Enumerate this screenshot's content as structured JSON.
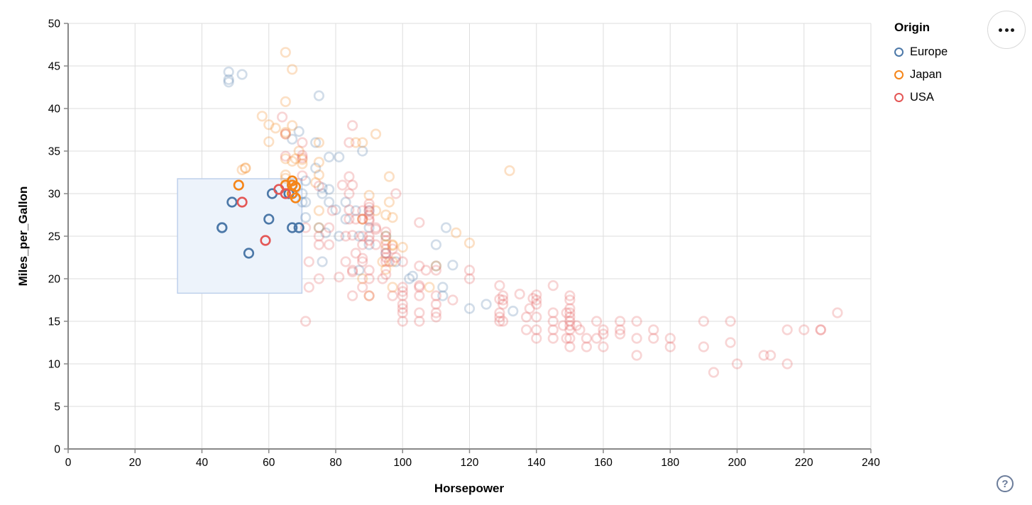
{
  "actions_button": {
    "icon": "ellipsis-icon"
  },
  "help_button": {
    "label": "?"
  },
  "chart_data": {
    "type": "scatter",
    "title": "",
    "xlabel": "Horsepower",
    "ylabel": "Miles_per_Gallon",
    "xlim": [
      0,
      240
    ],
    "ylim": [
      0,
      50
    ],
    "x_ticks": [
      0,
      20,
      40,
      60,
      80,
      100,
      120,
      140,
      160,
      180,
      200,
      220,
      240
    ],
    "y_ticks": [
      0,
      5,
      10,
      15,
      20,
      25,
      30,
      35,
      40,
      45,
      50
    ],
    "grid": true,
    "point_shape": "open-circle",
    "unselected_opacity": 0.25,
    "brush": {
      "x": [
        32.7,
        69.9
      ],
      "y": [
        18.3,
        31.75
      ],
      "fill": "#edf3fb",
      "stroke": "#bed0ec"
    },
    "legend": {
      "title": "Origin",
      "position": "top-right",
      "entries": [
        {
          "label": "Europe",
          "color": "#4c78a8"
        },
        {
          "label": "Japan",
          "color": "#f58518"
        },
        {
          "label": "USA",
          "color": "#e45756"
        }
      ]
    },
    "series": [
      {
        "name": "Europe",
        "color": "#4c78a8",
        "points": [
          [
            46,
            26
          ],
          [
            46,
            26
          ],
          [
            49,
            29
          ],
          [
            54,
            23
          ],
          [
            60,
            27
          ],
          [
            61,
            30
          ],
          [
            66,
            30
          ],
          [
            67,
            30
          ],
          [
            67,
            31
          ],
          [
            67,
            26
          ],
          [
            69,
            26
          ],
          [
            87,
            25
          ],
          [
            90,
            24
          ],
          [
            95,
            25
          ],
          [
            113,
            26
          ],
          [
            90,
            28
          ],
          [
            70,
            30
          ],
          [
            76,
            30
          ],
          [
            112,
            18
          ],
          [
            87,
            21
          ],
          [
            76,
            22
          ],
          [
            90,
            26
          ],
          [
            112,
            19
          ],
          [
            110,
            24
          ],
          [
            95,
            23
          ],
          [
            75,
            26
          ],
          [
            98,
            22
          ],
          [
            86,
            28
          ],
          [
            81,
            25
          ],
          [
            83,
            27
          ],
          [
            71,
            29
          ],
          [
            102,
            20
          ],
          [
            133,
            16.2
          ],
          [
            125,
            17
          ],
          [
            115,
            21.6
          ],
          [
            110,
            21.5
          ],
          [
            78,
            29
          ],
          [
            78,
            30.5
          ],
          [
            103,
            20.3
          ],
          [
            48,
            43.1
          ],
          [
            71,
            31.5
          ],
          [
            71,
            27.2
          ],
          [
            80,
            28.1
          ],
          [
            76,
            30.7
          ],
          [
            48,
            44.3
          ],
          [
            48,
            43.4
          ],
          [
            52,
            44
          ],
          [
            78,
            34.3
          ],
          [
            67,
            36.4
          ],
          [
            69,
            37.3
          ],
          [
            74,
            33
          ],
          [
            81,
            34.3
          ],
          [
            120,
            16.5
          ],
          [
            77,
            25.4
          ],
          [
            88,
            35
          ],
          [
            74,
            36
          ],
          [
            83,
            29
          ],
          [
            75,
            41.5
          ],
          [
            70,
            29
          ]
        ]
      },
      {
        "name": "Japan",
        "color": "#f58518",
        "points": [
          [
            51,
            31
          ],
          [
            65,
            31
          ],
          [
            67,
            31.5
          ],
          [
            67,
            31
          ],
          [
            68,
            30.8
          ],
          [
            68,
            29.5
          ],
          [
            67,
            30
          ],
          [
            95,
            24
          ],
          [
            88,
            27
          ],
          [
            88,
            27
          ],
          [
            95,
            25
          ],
          [
            69,
            35
          ],
          [
            65,
            32.2
          ],
          [
            92,
            28
          ],
          [
            97,
            24
          ],
          [
            97,
            19
          ],
          [
            94,
            22
          ],
          [
            88,
            20
          ],
          [
            90,
            18
          ],
          [
            53,
            33
          ],
          [
            96,
            29
          ],
          [
            53,
            33
          ],
          [
            75,
            28
          ],
          [
            108,
            19
          ],
          [
            70,
            33.5
          ],
          [
            75,
            26
          ],
          [
            97,
            22
          ],
          [
            110,
            21.5
          ],
          [
            60,
            36.1
          ],
          [
            65,
            31.8
          ],
          [
            65,
            40.8
          ],
          [
            65,
            34.1
          ],
          [
            65,
            37.2
          ],
          [
            95,
            27.5
          ],
          [
            97,
            27.2
          ],
          [
            95,
            21.1
          ],
          [
            97,
            23.9
          ],
          [
            52,
            32.8
          ],
          [
            75,
            32.2
          ],
          [
            67,
            44.6
          ],
          [
            65,
            46.6
          ],
          [
            60,
            38.1
          ],
          [
            75,
            36
          ],
          [
            58,
            39.1
          ],
          [
            68,
            34.1
          ],
          [
            65,
            37
          ],
          [
            62,
            37.7
          ],
          [
            88,
            36
          ],
          [
            86,
            36
          ],
          [
            70,
            34
          ],
          [
            67,
            38
          ],
          [
            96,
            32
          ],
          [
            132,
            32.7
          ],
          [
            100,
            23.7
          ],
          [
            67,
            33.8
          ],
          [
            74,
            31.3
          ],
          [
            120,
            24.2
          ],
          [
            116,
            25.4
          ],
          [
            92,
            37
          ],
          [
            90,
            29.8
          ],
          [
            75,
            33.7
          ]
        ]
      },
      {
        "name": "USA",
        "color": "#e45756",
        "points": [
          [
            52,
            29
          ],
          [
            59,
            24.5
          ],
          [
            63,
            30.5
          ],
          [
            65,
            30
          ],
          [
            130,
            18
          ],
          [
            165,
            15
          ],
          [
            150,
            18
          ],
          [
            150,
            16
          ],
          [
            140,
            17
          ],
          [
            198,
            15
          ],
          [
            220,
            14
          ],
          [
            215,
            14
          ],
          [
            225,
            14
          ],
          [
            190,
            15
          ],
          [
            170,
            15
          ],
          [
            160,
            14
          ],
          [
            150,
            15
          ],
          [
            225,
            14
          ],
          [
            95,
            22
          ],
          [
            97,
            18
          ],
          [
            85,
            21
          ],
          [
            90,
            21
          ],
          [
            215,
            10
          ],
          [
            200,
            10
          ],
          [
            210,
            11
          ],
          [
            193,
            9
          ],
          [
            100,
            19
          ],
          [
            105,
            16
          ],
          [
            100,
            17
          ],
          [
            88,
            19
          ],
          [
            90,
            18
          ],
          [
            165,
            14
          ],
          [
            175,
            14
          ],
          [
            153,
            14
          ],
          [
            150,
            14
          ],
          [
            180,
            12
          ],
          [
            170,
            11
          ],
          [
            175,
            13
          ],
          [
            190,
            12
          ],
          [
            149,
            13
          ],
          [
            86,
            23
          ],
          [
            90,
            28
          ],
          [
            75,
            25
          ],
          [
            155,
            13
          ],
          [
            160,
            13.5
          ],
          [
            140,
            13
          ],
          [
            150,
            13
          ],
          [
            208,
            11
          ],
          [
            155,
            12
          ],
          [
            160,
            12
          ],
          [
            129,
            15
          ],
          [
            75,
            24
          ],
          [
            83,
            22
          ],
          [
            100,
            18
          ],
          [
            140,
            14
          ],
          [
            145,
            13
          ],
          [
            137,
            14
          ],
          [
            150,
            12
          ],
          [
            198,
            12.5
          ],
          [
            158,
            13
          ],
          [
            145,
            15
          ],
          [
            137,
            15.5
          ],
          [
            130,
            15
          ],
          [
            120,
            21
          ],
          [
            95,
            23
          ],
          [
            72,
            22
          ],
          [
            72,
            19
          ],
          [
            94,
            20
          ],
          [
            90,
            20
          ],
          [
            85,
            18
          ],
          [
            107,
            21
          ],
          [
            145,
            16
          ],
          [
            230,
            16
          ],
          [
            100,
            16
          ],
          [
            78,
            26
          ],
          [
            110,
            18
          ],
          [
            95,
            24.5
          ],
          [
            110,
            17
          ],
          [
            129,
            16
          ],
          [
            75,
            20
          ],
          [
            83,
            25
          ],
          [
            100,
            15
          ],
          [
            78,
            24
          ],
          [
            96,
            22
          ],
          [
            71,
            26
          ],
          [
            97,
            23.5
          ],
          [
            90,
            25
          ],
          [
            95,
            23.5
          ],
          [
            88,
            25
          ],
          [
            98,
            22.5
          ],
          [
            115,
            17.5
          ],
          [
            105,
            18
          ],
          [
            100,
            22
          ],
          [
            88,
            24
          ],
          [
            95,
            22.5
          ],
          [
            90,
            24.5
          ],
          [
            105,
            19
          ],
          [
            100,
            16.5
          ],
          [
            88,
            22
          ],
          [
            145,
            14
          ],
          [
            150,
            14.5
          ],
          [
            148,
            14.5
          ],
          [
            110,
            16
          ],
          [
            105,
            15
          ],
          [
            110,
            15.5
          ],
          [
            120,
            20
          ],
          [
            140,
            15.5
          ],
          [
            150,
            16.5
          ],
          [
            152,
            14.5
          ],
          [
            129,
            15.5
          ],
          [
            170,
            13
          ],
          [
            165,
            13.5
          ],
          [
            158,
            15
          ],
          [
            180,
            13
          ],
          [
            130,
            17.5
          ],
          [
            150,
            17.5
          ],
          [
            110,
            21
          ],
          [
            95,
            25.5
          ],
          [
            98,
            30
          ],
          [
            70,
            32.1
          ],
          [
            105,
            19.2
          ],
          [
            139,
            17.7
          ],
          [
            129,
            19.2
          ],
          [
            140,
            18.1
          ],
          [
            100,
            18.5
          ],
          [
            75,
            30.9
          ],
          [
            70,
            34.2
          ],
          [
            70,
            34.5
          ],
          [
            85,
            25.1
          ],
          [
            81,
            20.2
          ],
          [
            85,
            20.8
          ],
          [
            95,
            20.5
          ],
          [
            105,
            21.5
          ],
          [
            145,
            19.2
          ],
          [
            149,
            16
          ],
          [
            129,
            17.6
          ],
          [
            138,
            16.5
          ],
          [
            135,
            18.2
          ],
          [
            140,
            17.5
          ],
          [
            150,
            15.5
          ],
          [
            130,
            17
          ],
          [
            90,
            28.8
          ],
          [
            90,
            26.8
          ],
          [
            90,
            28.4
          ],
          [
            92,
            25.8
          ],
          [
            84,
            30
          ],
          [
            70,
            36
          ],
          [
            65,
            34.4
          ],
          [
            65,
            37
          ],
          [
            64,
            39
          ],
          [
            88,
            28
          ],
          [
            88,
            27
          ],
          [
            84,
            28.1
          ],
          [
            90,
            27
          ],
          [
            92,
            26
          ],
          [
            92,
            24
          ],
          [
            85,
            38
          ],
          [
            85,
            31
          ],
          [
            84,
            32
          ],
          [
            79,
            28
          ],
          [
            82,
            31
          ],
          [
            105,
            26.6
          ],
          [
            84,
            27
          ],
          [
            88,
            22.4
          ],
          [
            86,
            27
          ],
          [
            84,
            36
          ],
          [
            90,
            27.5
          ],
          [
            71,
            15
          ]
        ]
      }
    ]
  }
}
